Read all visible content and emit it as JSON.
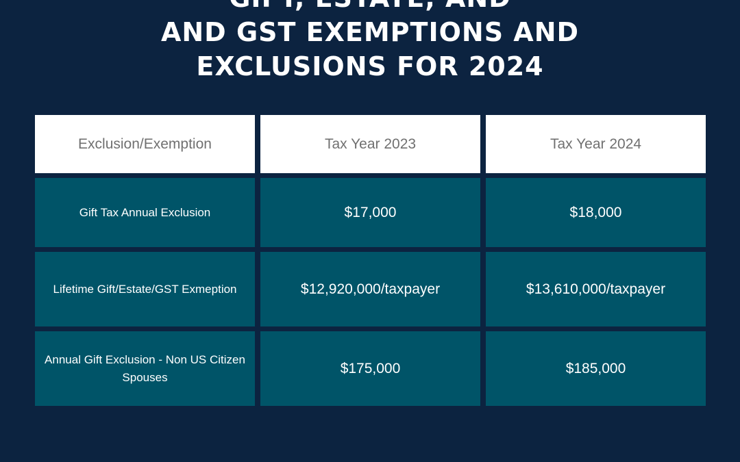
{
  "title_lines": [
    "GIFT, ESTATE, AND",
    "AND GST EXEMPTIONS AND",
    "EXCLUSIONS FOR 2024"
  ],
  "table": {
    "headers": [
      "Exclusion/Exemption",
      "Tax Year 2023",
      "Tax Year 2024"
    ],
    "rows": [
      {
        "label": "Gift Tax Annual Exclusion",
        "y2023": "$17,000",
        "y2024": "$18,000"
      },
      {
        "label": "Lifetime Gift/Estate/GST Exmeption",
        "y2023": "$12,920,000/taxpayer",
        "y2024": "$13,610,000/taxpayer"
      },
      {
        "label": "Annual Gift Exclusion - Non US Citizen Spouses",
        "y2023": "$175,000",
        "y2024": "$185,000"
      }
    ]
  },
  "colors": {
    "background": "#0c2340",
    "header_cell": "#ffffff",
    "body_cell": "#005468",
    "header_text": "#707070"
  }
}
